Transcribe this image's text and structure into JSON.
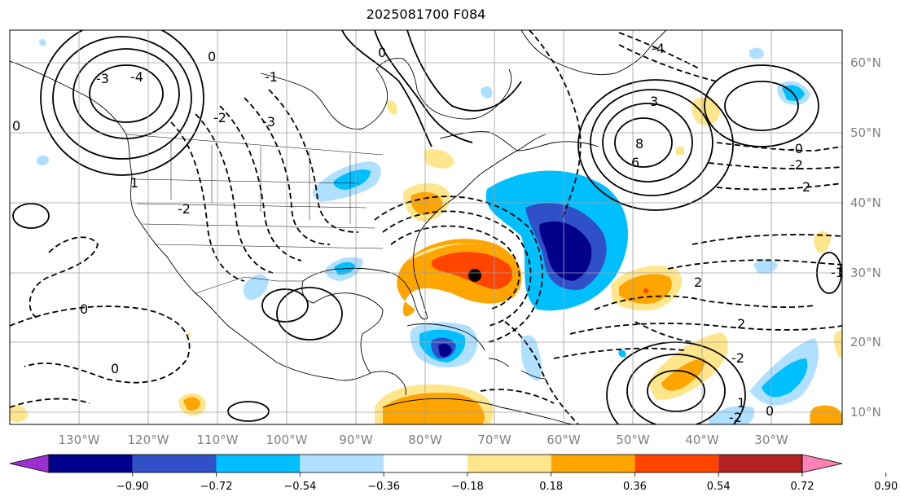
{
  "title": "2025081700 F084",
  "longitude_labels": [
    "130°W",
    "120°W",
    "110°W",
    "100°W",
    "90°W",
    "80°W",
    "70°W",
    "60°W",
    "50°W",
    "40°W",
    "30°W"
  ],
  "latitude_labels": [
    "60°N",
    "50°N",
    "40°N",
    "30°N",
    "20°N",
    "10°N"
  ],
  "colorbar": {
    "ticks": [
      "−0.90",
      "−0.72",
      "−0.54",
      "−0.36",
      "−0.18",
      "0.18",
      "0.36",
      "0.54",
      "0.72",
      "0.90"
    ],
    "colors": [
      "#9b30d0",
      "#00008b",
      "#3050c8",
      "#00bfff",
      "#b0e0ff",
      "#ffffff",
      "#ffe68c",
      "#ffa500",
      "#ff4500",
      "#b22222",
      "#ff82b4"
    ]
  },
  "contour_labels": [
    "-4",
    "-3",
    "-3",
    "-2",
    "-2",
    "-1",
    "0",
    "0",
    "0",
    "0",
    "1",
    "2",
    "2",
    "2",
    "3",
    "6",
    "8",
    "-0",
    "-2",
    "-2",
    "-4",
    "1",
    "-1",
    "-2",
    "0",
    "0"
  ],
  "colors": {
    "land_line": "#000000",
    "grid": "#a0a0a0",
    "contour": "#000000"
  }
}
